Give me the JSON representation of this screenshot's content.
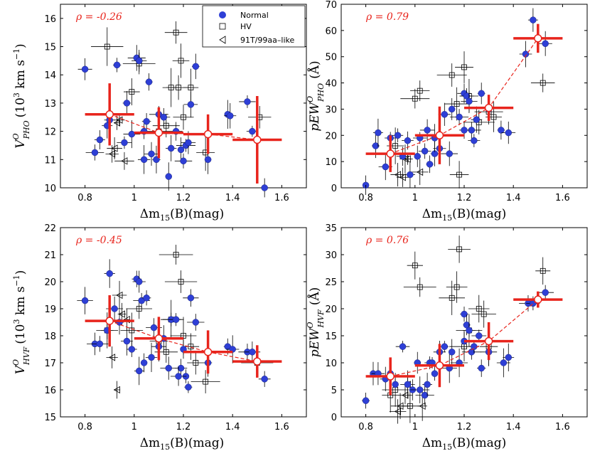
{
  "legend": {
    "normal": "Normal",
    "hv": "HV",
    "t91": "91T/99aa–like"
  },
  "colors": {
    "normal": "#2e3fd6",
    "bin": "#e8241c",
    "black": "#000000"
  },
  "chart_data": [
    {
      "id": "vpho",
      "type": "scatter",
      "title": "",
      "xlabel": "Δm15(B)(mag)",
      "ylabel": "V^O_PHO (10^3 km s^-1)",
      "ylabel_main": "V",
      "ylabel_sup": "O",
      "ylabel_sub": "PHO",
      "ylabel_unit": "(10",
      "ylabel_unit_sup": "3",
      "ylabel_unit_rest": " km s",
      "ylabel_unit_sup2": "−1",
      "ylabel_close": ")",
      "xlabel_a": "Δm",
      "xlabel_sub": "15",
      "xlabel_b": "(B)(mag)",
      "rho": "ρ = -0.26",
      "xlim": [
        0.7,
        1.7
      ],
      "ylim": [
        10,
        16.5
      ],
      "xticks": [
        0.8,
        1,
        1.2,
        1.4,
        1.6
      ],
      "xtick_labels": [
        "0.8",
        "1",
        "1.2",
        "1.4",
        "1.6"
      ],
      "yticks": [
        10,
        11,
        12,
        13,
        14,
        15,
        16
      ],
      "ytick_labels": [
        "10",
        "11",
        "12",
        "13",
        "14",
        "15",
        "16"
      ],
      "show_legend": true,
      "normal": [
        [
          0.8,
          14.2
        ],
        [
          0.84,
          11.25
        ],
        [
          0.86,
          11.7
        ],
        [
          0.89,
          12.2
        ],
        [
          0.9,
          12.4
        ],
        [
          0.93,
          14.35
        ],
        [
          0.96,
          11.6
        ],
        [
          0.97,
          13.0
        ],
        [
          0.99,
          11.9
        ],
        [
          1.01,
          14.6
        ],
        [
          1.02,
          14.5
        ],
        [
          1.04,
          11.0
        ],
        [
          1.05,
          12.35
        ],
        [
          1.06,
          13.75
        ],
        [
          1.07,
          11.2
        ],
        [
          1.09,
          11.0
        ],
        [
          1.1,
          12.6
        ],
        [
          1.12,
          12.5
        ],
        [
          1.14,
          10.4
        ],
        [
          1.15,
          11.4
        ],
        [
          1.17,
          12.0
        ],
        [
          1.19,
          11.35
        ],
        [
          1.2,
          10.95
        ],
        [
          1.21,
          11.5
        ],
        [
          1.22,
          11.6
        ],
        [
          1.23,
          12.95
        ],
        [
          1.25,
          14.3
        ],
        [
          1.3,
          11.0
        ],
        [
          1.38,
          12.6
        ],
        [
          1.39,
          12.55
        ],
        [
          1.46,
          13.05
        ],
        [
          1.48,
          12.0
        ],
        [
          1.53,
          10.0
        ],
        [
          1.02,
          14.5
        ],
        [
          1.04,
          12.0
        ]
      ],
      "hv": [
        [
          0.89,
          15.0
        ],
        [
          0.99,
          13.4
        ],
        [
          1.02,
          14.4
        ],
        [
          1.1,
          12.0
        ],
        [
          1.13,
          12.2
        ],
        [
          1.15,
          13.55
        ],
        [
          1.17,
          15.5
        ],
        [
          1.18,
          13.55
        ],
        [
          1.19,
          14.5
        ],
        [
          1.2,
          12.5
        ],
        [
          1.23,
          13.55
        ],
        [
          1.29,
          11.25
        ],
        [
          1.51,
          12.5
        ]
      ],
      "t91": [
        [
          0.91,
          11.2
        ],
        [
          0.92,
          11.4
        ],
        [
          0.93,
          12.3
        ],
        [
          0.94,
          12.4
        ],
        [
          0.96,
          10.95
        ]
      ],
      "bins": [
        {
          "x": 0.9,
          "y": 12.6,
          "xerr": 0.1,
          "yerr": 1.1
        },
        {
          "x": 1.1,
          "y": 11.95,
          "xerr": 0.1,
          "yerr": 0.9
        },
        {
          "x": 1.3,
          "y": 11.9,
          "xerr": 0.1,
          "yerr": 0.7
        },
        {
          "x": 1.5,
          "y": 11.7,
          "xerr": 0.1,
          "yerr": 1.55
        }
      ]
    },
    {
      "id": "ewpho",
      "type": "scatter",
      "title": "",
      "xlabel": "Δm15(B)(mag)",
      "ylabel": "pEW^O_PHO (Å)",
      "ylabel_main": "pEW",
      "ylabel_sup": "O",
      "ylabel_sub": "PHO",
      "ylabel_unit": "(Å)",
      "xlabel_a": "Δm",
      "xlabel_sub": "15",
      "xlabel_b": "(B)(mag)",
      "rho": "ρ = 0.79",
      "xlim": [
        0.7,
        1.7
      ],
      "ylim": [
        0,
        70
      ],
      "xticks": [
        0.8,
        1,
        1.2,
        1.4,
        1.6
      ],
      "xtick_labels": [
        "0.8",
        "1",
        "1.2",
        "1.4",
        "1.6"
      ],
      "yticks": [
        0,
        10,
        20,
        30,
        40,
        50,
        60,
        70
      ],
      "ytick_labels": [
        "0",
        "10",
        "20",
        "30",
        "40",
        "50",
        "60",
        "70"
      ],
      "show_legend": false,
      "normal": [
        [
          0.8,
          1.0
        ],
        [
          0.84,
          16.0
        ],
        [
          0.85,
          21.0
        ],
        [
          0.88,
          8.0
        ],
        [
          0.9,
          19.0
        ],
        [
          0.93,
          20.0
        ],
        [
          0.95,
          12.0
        ],
        [
          0.97,
          18.0
        ],
        [
          0.98,
          5.0
        ],
        [
          1.01,
          12.0
        ],
        [
          1.02,
          19.0
        ],
        [
          1.04,
          14.0
        ],
        [
          1.05,
          22.0
        ],
        [
          1.06,
          9.0
        ],
        [
          1.08,
          13.0
        ],
        [
          1.1,
          15.0
        ],
        [
          1.12,
          28.0
        ],
        [
          1.14,
          13.0
        ],
        [
          1.15,
          30.0
        ],
        [
          1.18,
          27.0
        ],
        [
          1.2,
          36.0
        ],
        [
          1.21,
          35.0
        ],
        [
          1.22,
          33.0
        ],
        [
          1.23,
          22.0
        ],
        [
          1.24,
          18.0
        ],
        [
          1.25,
          26.0
        ],
        [
          1.27,
          36.0
        ],
        [
          1.3,
          30.0
        ],
        [
          1.35,
          22.0
        ],
        [
          1.38,
          21.0
        ],
        [
          1.45,
          51.0
        ],
        [
          1.48,
          64.0
        ],
        [
          1.53,
          55.0
        ],
        [
          1.2,
          22.0
        ],
        [
          1.08,
          19.0
        ]
      ],
      "hv": [
        [
          0.92,
          16.0
        ],
        [
          1.0,
          34.0
        ],
        [
          1.02,
          37.0
        ],
        [
          1.15,
          43.0
        ],
        [
          1.17,
          32.0
        ],
        [
          1.18,
          5.0
        ],
        [
          1.2,
          46.0
        ],
        [
          1.22,
          35.0
        ],
        [
          1.26,
          25.0
        ],
        [
          1.3,
          29.0
        ],
        [
          1.32,
          27.0
        ],
        [
          1.52,
          40.0
        ]
      ],
      "t91": [
        [
          0.93,
          5.0
        ],
        [
          0.95,
          4.0
        ],
        [
          0.96,
          11.0
        ],
        [
          0.97,
          11.0
        ],
        [
          1.02,
          6.0
        ]
      ],
      "bins": [
        {
          "x": 0.9,
          "y": 13.0,
          "xerr": 0.1,
          "yerr": 7.0
        },
        {
          "x": 1.1,
          "y": 20.0,
          "xerr": 0.1,
          "yerr": 11.0
        },
        {
          "x": 1.3,
          "y": 30.5,
          "xerr": 0.1,
          "yerr": 5.0
        },
        {
          "x": 1.5,
          "y": 57.0,
          "xerr": 0.1,
          "yerr": 5.5
        }
      ]
    },
    {
      "id": "vhvf",
      "type": "scatter",
      "title": "",
      "xlabel": "Δm15(B)(mag)",
      "ylabel": "V^O_HVF (10^3 km s^-1)",
      "ylabel_main": "V",
      "ylabel_sup": "O",
      "ylabel_sub": "HVF",
      "ylabel_unit": "(10",
      "ylabel_unit_sup": "3",
      "ylabel_unit_rest": " km s",
      "ylabel_unit_sup2": "−1",
      "ylabel_close": ")",
      "xlabel_a": "Δm",
      "xlabel_sub": "15",
      "xlabel_b": "(B)(mag)",
      "rho": "ρ = -0.45",
      "xlim": [
        0.7,
        1.7
      ],
      "ylim": [
        15,
        22
      ],
      "xticks": [
        0.8,
        1,
        1.2,
        1.4,
        1.6
      ],
      "xtick_labels": [
        "0.8",
        "1",
        "1.2",
        "1.4",
        "1.6"
      ],
      "yticks": [
        15,
        16,
        17,
        18,
        19,
        20,
        21,
        22
      ],
      "ytick_labels": [
        "15",
        "16",
        "17",
        "18",
        "19",
        "20",
        "21",
        "22"
      ],
      "show_legend": false,
      "normal": [
        [
          0.8,
          19.3
        ],
        [
          0.84,
          17.7
        ],
        [
          0.86,
          17.7
        ],
        [
          0.89,
          18.2
        ],
        [
          0.9,
          20.3
        ],
        [
          0.92,
          19.0
        ],
        [
          0.94,
          18.5
        ],
        [
          0.97,
          17.8
        ],
        [
          0.99,
          17.5
        ],
        [
          1.01,
          20.1
        ],
        [
          1.02,
          16.7
        ],
        [
          1.03,
          19.3
        ],
        [
          1.04,
          17.0
        ],
        [
          1.05,
          19.4
        ],
        [
          1.07,
          17.2
        ],
        [
          1.08,
          18.3
        ],
        [
          1.1,
          17.6
        ],
        [
          1.12,
          17.9
        ],
        [
          1.14,
          16.8
        ],
        [
          1.15,
          18.6
        ],
        [
          1.17,
          18.6
        ],
        [
          1.19,
          16.8
        ],
        [
          1.2,
          17.5
        ],
        [
          1.21,
          16.5
        ],
        [
          1.22,
          16.1
        ],
        [
          1.23,
          19.4
        ],
        [
          1.25,
          18.5
        ],
        [
          1.3,
          17.0
        ],
        [
          1.38,
          17.6
        ],
        [
          1.4,
          17.5
        ],
        [
          1.46,
          17.4
        ],
        [
          1.48,
          17.4
        ],
        [
          1.53,
          16.4
        ],
        [
          1.02,
          20.0
        ],
        [
          1.18,
          16.5
        ]
      ],
      "hv": [
        [
          0.89,
          18.2
        ],
        [
          0.99,
          18.2
        ],
        [
          1.02,
          19.0
        ],
        [
          1.1,
          17.8
        ],
        [
          1.13,
          17.4
        ],
        [
          1.15,
          18.6
        ],
        [
          1.17,
          21.0
        ],
        [
          1.19,
          20.0
        ],
        [
          1.2,
          18.0
        ],
        [
          1.23,
          17.6
        ],
        [
          1.25,
          17.0
        ],
        [
          1.29,
          16.3
        ],
        [
          1.5,
          17.0
        ]
      ],
      "t91": [
        [
          0.91,
          17.2
        ],
        [
          0.93,
          16.0
        ],
        [
          0.94,
          19.5
        ],
        [
          0.95,
          18.8
        ],
        [
          0.97,
          18.6
        ]
      ],
      "bins": [
        {
          "x": 0.9,
          "y": 18.55,
          "xerr": 0.1,
          "yerr": 0.95
        },
        {
          "x": 1.1,
          "y": 17.9,
          "xerr": 0.1,
          "yerr": 0.8
        },
        {
          "x": 1.3,
          "y": 17.4,
          "xerr": 0.1,
          "yerr": 0.8
        },
        {
          "x": 1.5,
          "y": 17.05,
          "xerr": 0.1,
          "yerr": 0.6
        }
      ]
    },
    {
      "id": "ewhvf",
      "type": "scatter",
      "title": "",
      "xlabel": "Δm15(B)(mag)",
      "ylabel": "pEW^O_HVF (Å)",
      "ylabel_main": "pEW",
      "ylabel_sup": "O",
      "ylabel_sub": "HVF",
      "ylabel_unit": "(Å)",
      "xlabel_a": "Δm",
      "xlabel_sub": "15",
      "xlabel_b": "(B)(mag)",
      "rho": "ρ = 0.76",
      "xlim": [
        0.7,
        1.7
      ],
      "ylim": [
        0,
        35
      ],
      "xticks": [
        0.8,
        1,
        1.2,
        1.4,
        1.6
      ],
      "xtick_labels": [
        "0.8",
        "1",
        "1.2",
        "1.4",
        "1.6"
      ],
      "yticks": [
        0,
        5,
        10,
        15,
        20,
        25,
        30,
        35
      ],
      "ytick_labels": [
        "0",
        "5",
        "10",
        "15",
        "20",
        "25",
        "30",
        "35"
      ],
      "show_legend": false,
      "normal": [
        [
          0.8,
          3.0
        ],
        [
          0.83,
          8.0
        ],
        [
          0.85,
          8.0
        ],
        [
          0.88,
          7.0
        ],
        [
          0.9,
          8.0
        ],
        [
          0.92,
          6.0
        ],
        [
          0.95,
          13.0
        ],
        [
          0.97,
          6.0
        ],
        [
          0.99,
          5.0
        ],
        [
          1.01,
          10.0
        ],
        [
          1.02,
          5.0
        ],
        [
          1.04,
          4.0
        ],
        [
          1.05,
          6.0
        ],
        [
          1.06,
          10.0
        ],
        [
          1.08,
          8.0
        ],
        [
          1.1,
          12.0
        ],
        [
          1.12,
          13.0
        ],
        [
          1.14,
          9.0
        ],
        [
          1.15,
          12.0
        ],
        [
          1.18,
          10.0
        ],
        [
          1.2,
          19.0
        ],
        [
          1.21,
          17.0
        ],
        [
          1.22,
          16.0
        ],
        [
          1.23,
          12.0
        ],
        [
          1.24,
          13.0
        ],
        [
          1.26,
          15.0
        ],
        [
          1.27,
          9.0
        ],
        [
          1.3,
          12.0
        ],
        [
          1.36,
          10.0
        ],
        [
          1.38,
          11.0
        ],
        [
          1.46,
          21.0
        ],
        [
          1.48,
          21.0
        ],
        [
          1.53,
          23.0
        ],
        [
          1.2,
          14.0
        ],
        [
          1.07,
          10.0
        ]
      ],
      "hv": [
        [
          0.92,
          5.0
        ],
        [
          1.0,
          28.0
        ],
        [
          1.02,
          24.0
        ],
        [
          1.15,
          22.0
        ],
        [
          1.17,
          24.0
        ],
        [
          1.18,
          31.0
        ],
        [
          1.2,
          13.0
        ],
        [
          1.22,
          16.0
        ],
        [
          1.26,
          20.0
        ],
        [
          1.28,
          19.0
        ],
        [
          1.3,
          13.0
        ],
        [
          1.52,
          27.0
        ],
        [
          0.9,
          4.0
        ],
        [
          0.98,
          2.0
        ]
      ],
      "t91": [
        [
          0.93,
          1.0
        ],
        [
          0.94,
          2.0
        ],
        [
          0.96,
          4.0
        ],
        [
          0.97,
          6.0
        ],
        [
          1.03,
          2.0
        ]
      ],
      "bins": [
        {
          "x": 0.9,
          "y": 7.5,
          "xerr": 0.1,
          "yerr": 3.5
        },
        {
          "x": 1.1,
          "y": 9.5,
          "xerr": 0.1,
          "yerr": 4.0
        },
        {
          "x": 1.3,
          "y": 14.0,
          "xerr": 0.1,
          "yerr": 3.5
        },
        {
          "x": 1.5,
          "y": 21.7,
          "xerr": 0.1,
          "yerr": 1.5
        }
      ]
    }
  ]
}
